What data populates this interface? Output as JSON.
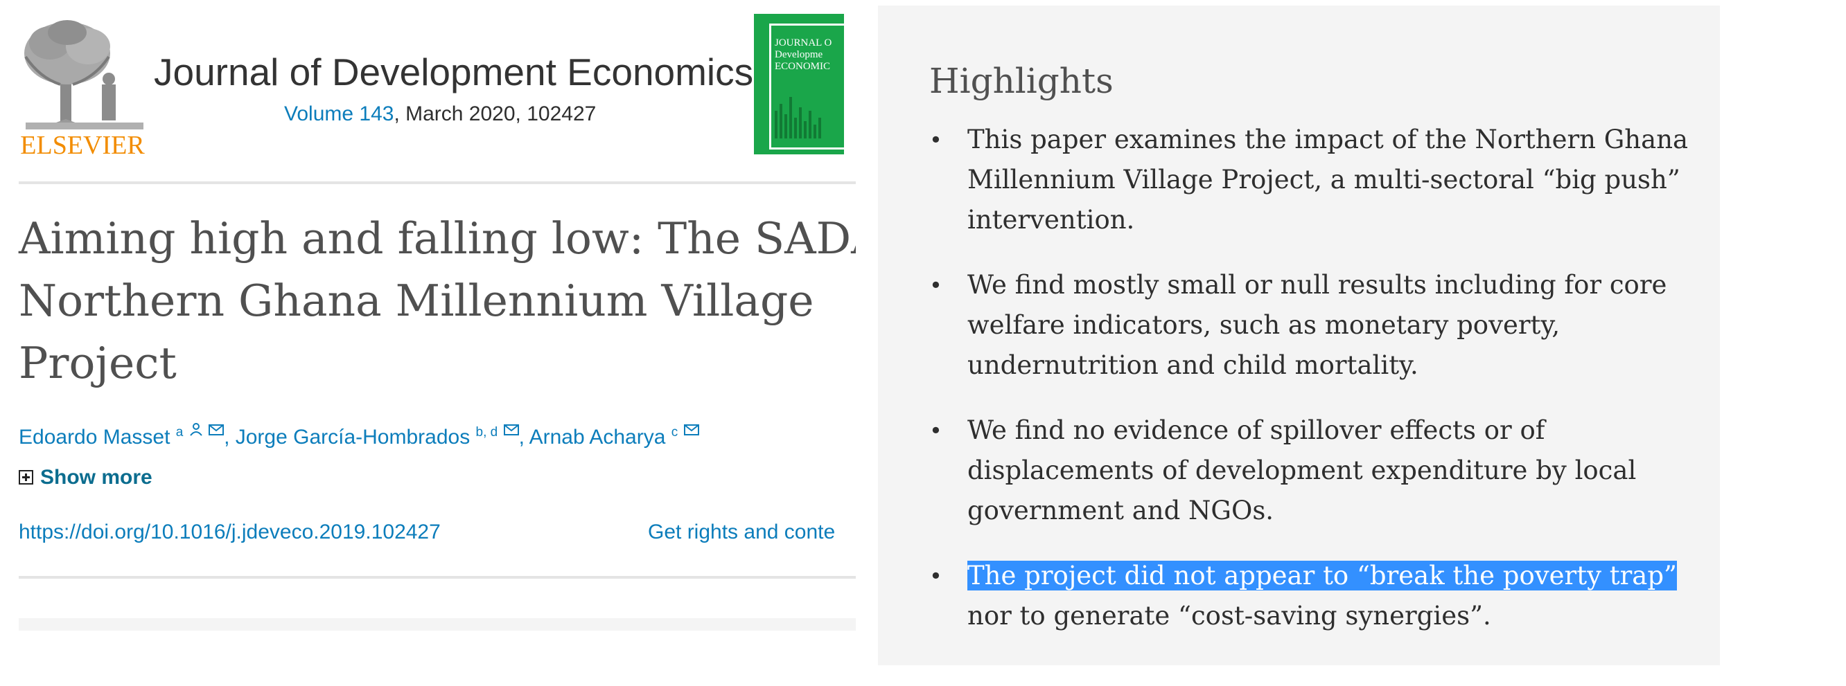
{
  "header": {
    "publisher_logo_text": "ELSEVIER",
    "journal_title": "Journal of Development Economics",
    "volume_link": "Volume 143",
    "issue_info": ", March 2020, 102427",
    "cover_text": [
      "JOURNAL O",
      "Developme",
      "ECONOMIC"
    ]
  },
  "article": {
    "title_lines": [
      "Aiming high and falling low: The SADA-",
      "Northern Ghana Millennium Village",
      "Project"
    ],
    "authors": [
      {
        "name": "Edoardo Masset",
        "sup": "a"
      },
      {
        "name": "Jorge García-Hombrados",
        "sup": "b, d"
      },
      {
        "name": "Arnab Acharya",
        "sup": "c"
      }
    ],
    "show_more": "Show more",
    "doi": "https://doi.org/10.1016/j.jdeveco.2019.102427",
    "rights": "Get rights and conte"
  },
  "highlights": {
    "title": "Highlights",
    "items": [
      {
        "lines": [
          "This paper examines the impact of the Northern Ghana",
          "Millennium Village Project, a multi-sectoral “big push”",
          "intervention."
        ]
      },
      {
        "lines": [
          "We find mostly small or null results including for core",
          "welfare indicators, such as monetary poverty,",
          "undernutrition and child mortality."
        ]
      },
      {
        "lines": [
          "We find no evidence of spillover effects or of",
          "displacements of development expenditure by local",
          "government and NGOs."
        ]
      },
      {
        "lines": [
          "The project did not appear to “break the poverty trap”",
          "nor to generate “cost-saving synergies”."
        ]
      }
    ],
    "selected_text": "The project did not appear to “break the poverty trap”"
  },
  "colors": {
    "link": "#0c7dbb",
    "selection": "#3390ff",
    "panel_bg": "#f4f4f4",
    "logo_orange": "#f28c00",
    "cover_green": "#1aa64a"
  }
}
